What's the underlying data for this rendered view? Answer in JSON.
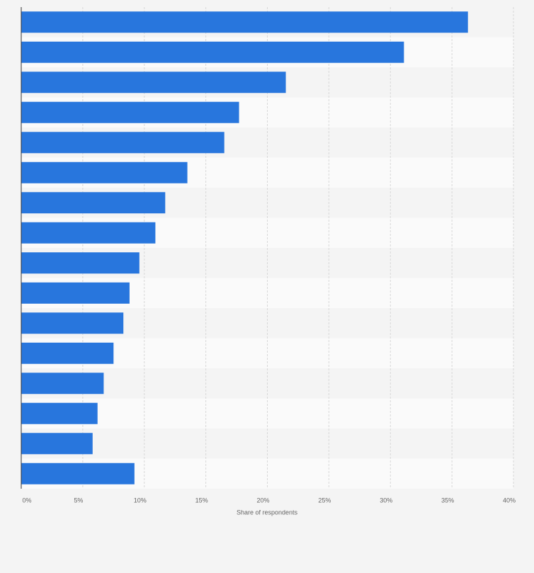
{
  "chart_data": {
    "type": "hbar",
    "categories": [
      null,
      null,
      null,
      null,
      null,
      null,
      null,
      null,
      null,
      null,
      null,
      null,
      null,
      null,
      null,
      null
    ],
    "values": [
      36.3,
      31.1,
      21.5,
      17.7,
      16.5,
      13.5,
      11.7,
      10.9,
      9.6,
      8.8,
      8.3,
      7.5,
      6.7,
      6.2,
      5.8,
      9.2
    ],
    "color": "#2876dd",
    "xlabel": "Share of respondents",
    "xlim": [
      0,
      40
    ],
    "xticks": [
      {
        "value": 0,
        "label": "0%"
      },
      {
        "value": 5,
        "label": "5%"
      },
      {
        "value": 10,
        "label": "10%"
      },
      {
        "value": 15,
        "label": "15%"
      },
      {
        "value": 20,
        "label": "20%"
      },
      {
        "value": 25,
        "label": "25%"
      },
      {
        "value": 30,
        "label": "30%"
      },
      {
        "value": 35,
        "label": "35%"
      },
      {
        "value": 40,
        "label": "40%"
      }
    ],
    "grid": true
  }
}
